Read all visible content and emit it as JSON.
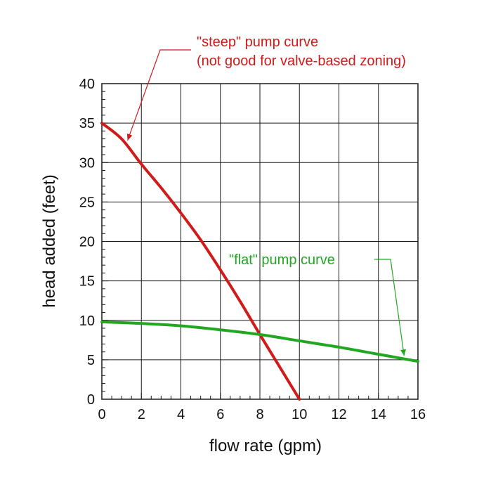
{
  "chart_data": {
    "type": "line",
    "xlabel": "flow rate (gpm)",
    "ylabel": "head added (feet)",
    "xlim": [
      0,
      16
    ],
    "ylim": [
      0,
      40
    ],
    "x_ticks": [
      "0",
      "2",
      "4",
      "6",
      "8",
      "10",
      "12",
      "14",
      "16"
    ],
    "y_ticks": [
      "0",
      "5",
      "10",
      "15",
      "20",
      "25",
      "30",
      "35",
      "40"
    ],
    "grid": true,
    "series": [
      {
        "color": "#d11a1a",
        "points": [
          [
            0,
            35
          ],
          [
            1,
            33
          ],
          [
            2,
            29.8
          ],
          [
            3,
            26.8
          ],
          [
            4,
            23.6
          ],
          [
            5,
            20.2
          ],
          [
            6,
            16.4
          ],
          [
            7,
            12.4
          ],
          [
            8,
            8.2
          ],
          [
            9,
            4.1
          ],
          [
            10,
            0
          ]
        ]
      },
      {
        "color": "#22a722",
        "points": [
          [
            0,
            9.8
          ],
          [
            2,
            9.6
          ],
          [
            4,
            9.3
          ],
          [
            6,
            8.8
          ],
          [
            8,
            8.2
          ],
          [
            10,
            7.4
          ],
          [
            12,
            6.6
          ],
          [
            14,
            5.7
          ],
          [
            16,
            4.8
          ]
        ]
      }
    ],
    "annotations": [
      {
        "lines": [
          "\"steep\" pump curve",
          "(not good for valve-based zoning)"
        ],
        "color": "#d11a1a",
        "points_to": [
          1.3,
          32.8
        ]
      },
      {
        "lines": [
          "\"flat\" pump curve"
        ],
        "color": "#22a722",
        "points_to": [
          15.3,
          5.5
        ]
      }
    ]
  }
}
